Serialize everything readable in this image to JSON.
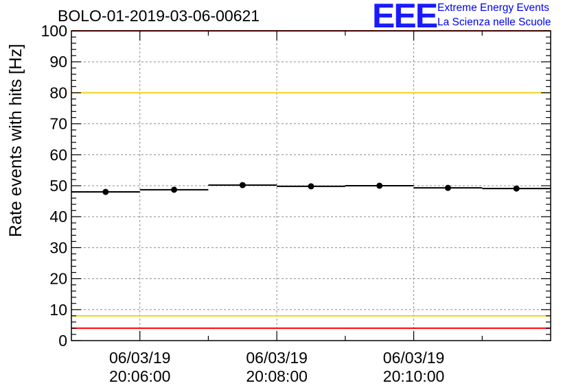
{
  "header": {
    "title": "BOLO-01-2019-03-06-00621",
    "logo_mark": "EEE",
    "logo_line1": "Extreme Energy Events",
    "logo_line2": "La Scienza nelle Scuole"
  },
  "colors": {
    "logo": "#1a1aff",
    "limit_red": "#ff0000",
    "limit_yellow": "#f2d21a",
    "data": "#000000",
    "grid": "#8c8c8c"
  },
  "chart_data": {
    "type": "scatter",
    "title": "BOLO-01-2019-03-06-00621",
    "ylabel": "Rate events with hits [Hz]",
    "ylim": [
      0,
      100
    ],
    "yticks": [
      0,
      10,
      20,
      30,
      40,
      50,
      60,
      70,
      80,
      90,
      100
    ],
    "xlim": [
      "20:05:00",
      "20:12:00"
    ],
    "xticks": [
      {
        "time": "20:06:00",
        "date": "06/03/19"
      },
      {
        "time": "20:08:00",
        "date": "06/03/19"
      },
      {
        "time": "20:10:00",
        "date": "06/03/19"
      }
    ],
    "grid": true,
    "series": [
      {
        "points": [
          {
            "x": "20:05:30",
            "y": 48.0,
            "xmin": "20:05:00",
            "xmax": "20:06:00"
          },
          {
            "x": "20:06:30",
            "y": 48.7,
            "xmin": "20:06:00",
            "xmax": "20:07:00"
          },
          {
            "x": "20:07:30",
            "y": 50.2,
            "xmin": "20:07:00",
            "xmax": "20:08:00"
          },
          {
            "x": "20:08:30",
            "y": 49.8,
            "xmin": "20:08:00",
            "xmax": "20:09:00"
          },
          {
            "x": "20:09:30",
            "y": 50.0,
            "xmin": "20:09:00",
            "xmax": "20:10:00"
          },
          {
            "x": "20:10:30",
            "y": 49.3,
            "xmin": "20:10:00",
            "xmax": "20:11:00"
          },
          {
            "x": "20:11:30",
            "y": 49.1,
            "xmin": "20:11:00",
            "xmax": "20:12:00"
          }
        ]
      }
    ],
    "reference_lines": [
      {
        "y": 100,
        "color": "red"
      },
      {
        "y": 80,
        "color": "yellow"
      },
      {
        "y": 8,
        "color": "yellow"
      },
      {
        "y": 4,
        "color": "red"
      }
    ]
  }
}
